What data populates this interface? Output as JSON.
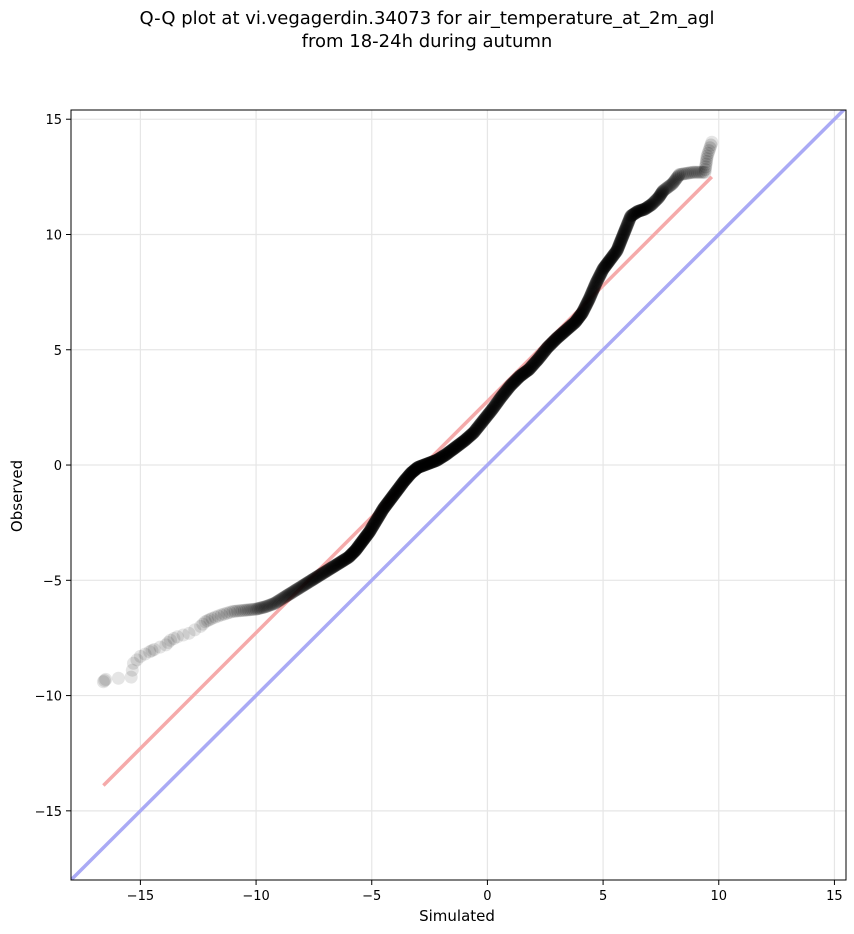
{
  "chart_data": {
    "type": "scatter",
    "title_line1": "Q-Q plot at vi.vegagerdin.34073 for air_temperature_at_2m_agl",
    "title_line2": "from 18-24h during autumn",
    "xlabel": "Simulated",
    "ylabel": "Observed",
    "xlim": [
      -18,
      15.5
    ],
    "ylim": [
      -18,
      15.4
    ],
    "xticks": [
      -15,
      -10,
      -5,
      0,
      5,
      10,
      15
    ],
    "yticks": [
      -15,
      -10,
      -5,
      0,
      5,
      10,
      15
    ],
    "xtick_labels": [
      "−15",
      "−10",
      "−5",
      "0",
      "5",
      "10",
      "15"
    ],
    "ytick_labels": [
      "−15",
      "−10",
      "−5",
      "0",
      "5",
      "10",
      "15"
    ],
    "grid": true,
    "identity_line": {
      "color": "#aaaaf5",
      "from": [
        -18,
        -18
      ],
      "to": [
        15.5,
        15.5
      ]
    },
    "fit_line": {
      "color": "#f5aaaa",
      "x": [
        -16.6,
        9.7
      ],
      "y": [
        -13.9,
        12.5
      ]
    },
    "points_color": "#000000",
    "quantiles": [
      [
        -16.6,
        -9.4
      ],
      [
        -16.5,
        -9.3
      ],
      [
        -15.4,
        -9.2
      ],
      [
        -15.3,
        -8.6
      ],
      [
        -15.0,
        -8.3
      ],
      [
        -14.6,
        -8.1
      ],
      [
        -14.4,
        -8.0
      ],
      [
        -13.9,
        -7.8
      ],
      [
        -13.7,
        -7.6
      ],
      [
        -13.4,
        -7.45
      ],
      [
        -12.9,
        -7.3
      ],
      [
        -12.4,
        -7.0
      ],
      [
        -12.2,
        -6.8
      ],
      [
        -11.9,
        -6.65
      ],
      [
        -11.5,
        -6.5
      ],
      [
        -11.0,
        -6.35
      ],
      [
        -10.5,
        -6.3
      ],
      [
        -10.0,
        -6.25
      ],
      [
        -9.6,
        -6.15
      ],
      [
        -9.2,
        -6.0
      ],
      [
        -8.8,
        -5.75
      ],
      [
        -8.4,
        -5.5
      ],
      [
        -8.0,
        -5.25
      ],
      [
        -7.6,
        -5.0
      ],
      [
        -7.2,
        -4.75
      ],
      [
        -6.8,
        -4.5
      ],
      [
        -6.4,
        -4.25
      ],
      [
        -6.0,
        -4.0
      ],
      [
        -5.7,
        -3.7
      ],
      [
        -5.4,
        -3.3
      ],
      [
        -5.1,
        -2.9
      ],
      [
        -4.8,
        -2.4
      ],
      [
        -4.5,
        -1.9
      ],
      [
        -4.2,
        -1.5
      ],
      [
        -3.9,
        -1.1
      ],
      [
        -3.6,
        -0.7
      ],
      [
        -3.3,
        -0.35
      ],
      [
        -3.0,
        -0.1
      ],
      [
        -2.6,
        0.05
      ],
      [
        -2.2,
        0.2
      ],
      [
        -1.8,
        0.45
      ],
      [
        -1.4,
        0.75
      ],
      [
        -1.0,
        1.05
      ],
      [
        -0.6,
        1.4
      ],
      [
        -0.2,
        1.9
      ],
      [
        0.2,
        2.4
      ],
      [
        0.6,
        2.95
      ],
      [
        1.0,
        3.45
      ],
      [
        1.4,
        3.85
      ],
      [
        1.8,
        4.15
      ],
      [
        2.2,
        4.6
      ],
      [
        2.6,
        5.1
      ],
      [
        3.0,
        5.5
      ],
      [
        3.4,
        5.85
      ],
      [
        3.8,
        6.2
      ],
      [
        4.1,
        6.6
      ],
      [
        4.4,
        7.2
      ],
      [
        4.7,
        7.9
      ],
      [
        5.0,
        8.5
      ],
      [
        5.3,
        8.9
      ],
      [
        5.6,
        9.3
      ],
      [
        5.8,
        9.8
      ],
      [
        6.0,
        10.3
      ],
      [
        6.2,
        10.8
      ],
      [
        6.5,
        11.0
      ],
      [
        6.8,
        11.1
      ],
      [
        7.1,
        11.3
      ],
      [
        7.4,
        11.6
      ],
      [
        7.6,
        11.9
      ],
      [
        8.0,
        12.2
      ],
      [
        8.3,
        12.6
      ],
      [
        8.9,
        12.7
      ],
      [
        9.4,
        12.7
      ],
      [
        9.5,
        13.4
      ],
      [
        9.7,
        14.0
      ]
    ]
  }
}
